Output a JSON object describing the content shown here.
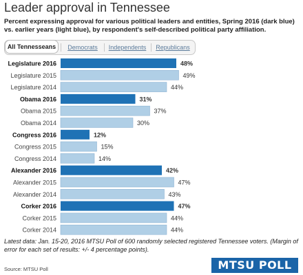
{
  "title": "Leader approval in Tennessee",
  "subtitle": "Percent expressing approval for various political leaders and entities, Spring 2016 (dark blue) vs. earlier years (light blue), by respondent's self-described political party affiliation.",
  "tabs": [
    {
      "label": "All Tennesseans",
      "active": true
    },
    {
      "label": "Democrats",
      "active": false
    },
    {
      "label": "Independents",
      "active": false
    },
    {
      "label": "Republicans",
      "active": false
    }
  ],
  "colors": {
    "current": "#1f72b5",
    "earlier": "#b0cfe6",
    "border_earlier": "#8fb5d4"
  },
  "chart_data": {
    "type": "bar",
    "orientation": "horizontal",
    "xlim": [
      0,
      50
    ],
    "grid": false,
    "categories": [
      "Legislature 2016",
      "Legislature 2015",
      "Legislature 2014",
      "Obama 2016",
      "Obama 2015",
      "Obama 2014",
      "Congress 2016",
      "Congress 2015",
      "Congress 2014",
      "Alexander 2016",
      "Alexander 2015",
      "Alexander 2014",
      "Corker 2016",
      "Corker 2015",
      "Corker 2014"
    ],
    "values": [
      48,
      49,
      44,
      31,
      37,
      30,
      12,
      15,
      14,
      42,
      47,
      43,
      47,
      44,
      44
    ],
    "value_labels": [
      "48%",
      "49%",
      "44%",
      "31%",
      "37%",
      "30%",
      "12%",
      "15%",
      "14%",
      "42%",
      "47%",
      "43%",
      "47%",
      "44%",
      "44%"
    ],
    "highlight": [
      true,
      false,
      false,
      true,
      false,
      false,
      true,
      false,
      false,
      true,
      false,
      false,
      true,
      false,
      false
    ]
  },
  "footnote": "Latest data: Jan. 15-20, 2016 MTSU Poll of 600 randomly selected registered Tennessee voters. (Margin of error for each set of results: +/- 4 percentage points).",
  "source": "Source: MTSU Poll",
  "logo": "MTSU POLL"
}
